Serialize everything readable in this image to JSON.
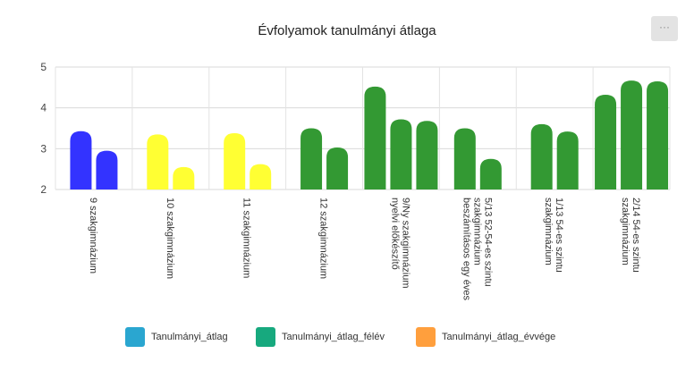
{
  "menu_icon": "ellipsis-icon",
  "menu_label": "···",
  "chart_data": {
    "type": "bar",
    "title": "Évfolyamok tanulmányi átlaga",
    "xlabel": "",
    "ylabel": "",
    "ylim": [
      2,
      5
    ],
    "yticks": [
      "2",
      "3",
      "4",
      "5"
    ],
    "grid": true,
    "legend_position": "bottom",
    "categories": [
      "9 szakgimnázium",
      "10 szakgimnázium",
      "11 szakgimnázium",
      "12 szakgimnázium",
      "9/Ny szakgimnázium nyelvi előkészítő",
      "5/13 52-54-es szintu szakgimnázium beszámításos egy éves",
      "1/13 54-es szintu szakgimnázium",
      "2/14 54-es szintu szakgimnázium"
    ],
    "category_label_lines": [
      [
        "9 szakgimnázium"
      ],
      [
        "10 szakgimnázium"
      ],
      [
        "11 szakgimnázium"
      ],
      [
        "12 szakgimnázium"
      ],
      [
        "9/Ny szakgimnázium",
        "nyelvi előkészítő"
      ],
      [
        "5/13 52-54-es szintu",
        "szakgimnázium",
        "beszámításos egy éves"
      ],
      [
        "1/13 54-es szintu",
        "szakgimnázium"
      ],
      [
        "2/14 54-es szintu",
        "szakgimnázium"
      ]
    ],
    "bars": [
      {
        "category": 0,
        "values": [
          3.43,
          2.95
        ],
        "color": "#3333ff"
      },
      {
        "category": 1,
        "values": [
          3.35,
          2.55
        ],
        "color": "#ffff33"
      },
      {
        "category": 2,
        "values": [
          3.38,
          2.62
        ],
        "color": "#ffff33"
      },
      {
        "category": 3,
        "values": [
          3.5,
          3.03
        ],
        "color": "#339933"
      },
      {
        "category": 4,
        "values": [
          4.52,
          3.72,
          3.68
        ],
        "color": "#339933"
      },
      {
        "category": 5,
        "values": [
          3.5,
          2.75
        ],
        "color": "#339933"
      },
      {
        "category": 6,
        "values": [
          3.6,
          3.42
        ],
        "color": "#339933"
      },
      {
        "category": 7,
        "values": [
          4.32,
          4.67,
          4.65
        ],
        "color": "#339933"
      }
    ],
    "legend": [
      {
        "name": "Tanulmányi_átlag",
        "color": "#2aa6d0"
      },
      {
        "name": "Tanulmányi_átlag_félév",
        "color": "#17a97e"
      },
      {
        "name": "Tanulmányi_átlag_évvége",
        "color": "#ff9f3d"
      }
    ]
  }
}
